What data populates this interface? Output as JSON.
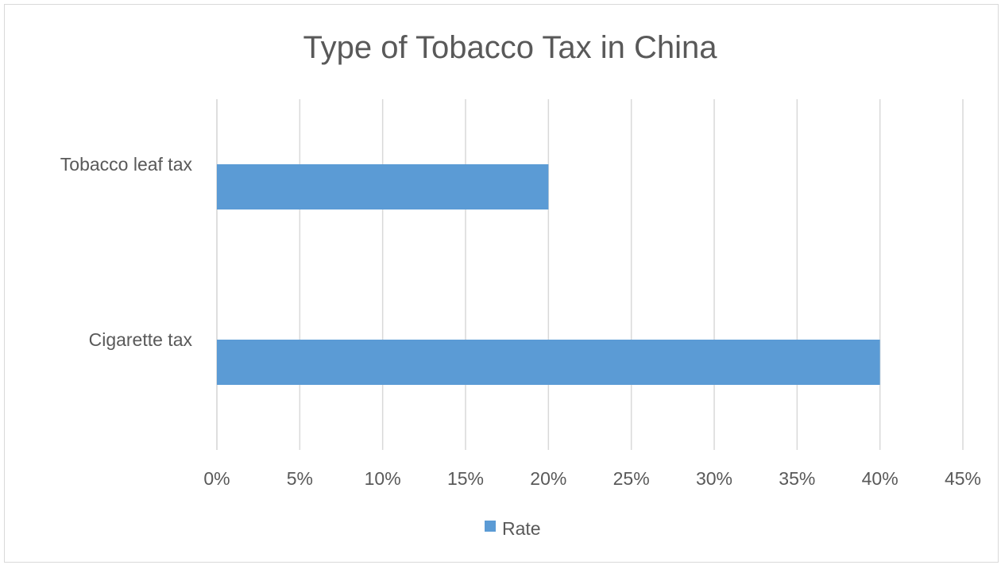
{
  "chart_data": {
    "type": "bar",
    "orientation": "horizontal",
    "title": "Type of Tobacco Tax in China",
    "categories": [
      "Cigarette tax",
      "Tobacco leaf tax"
    ],
    "series": [
      {
        "name": "Rate",
        "values": [
          40,
          20
        ]
      }
    ],
    "xlim": [
      0,
      45
    ],
    "x_ticks": [
      "0%",
      "5%",
      "10%",
      "15%",
      "20%",
      "25%",
      "30%",
      "35%",
      "40%",
      "45%"
    ],
    "x_tick_values": [
      0,
      5,
      10,
      15,
      20,
      25,
      30,
      35,
      40,
      45
    ],
    "grid": true,
    "legend": "bottom",
    "colors": {
      "bar": "#5b9bd5",
      "grid": "#d9d9d9",
      "text": "#595959"
    }
  }
}
